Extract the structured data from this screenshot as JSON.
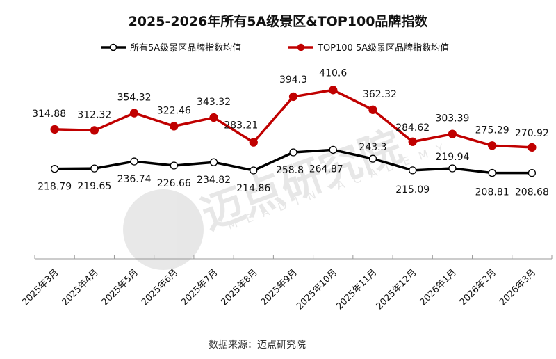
{
  "chart_data": {
    "type": "line",
    "title": "2025-2026年所有5A级景区&TOP100品牌指数",
    "xlabel": "",
    "ylabel": "",
    "categories": [
      "2025年3月",
      "2025年4月",
      "2025年5月",
      "2025年6月",
      "2025年7月",
      "2025年8月",
      "2025年9月",
      "2025年10月",
      "2025年11月",
      "2025年12月",
      "2026年1月",
      "2026年2月",
      "2026年3月"
    ],
    "series": [
      {
        "name": "所有5A级景区品牌指数均值",
        "color": "#000000",
        "values": [
          218.79,
          219.65,
          236.74,
          226.66,
          234.82,
          214.86,
          258.8,
          264.87,
          243.3,
          215.09,
          219.94,
          208.81,
          208.68
        ]
      },
      {
        "name": "TOP100 5A级景区品牌指数均值",
        "color": "#C00000",
        "values": [
          314.88,
          312.32,
          354.32,
          322.46,
          343.32,
          283.21,
          394.3,
          410.6,
          362.32,
          284.62,
          303.39,
          275.29,
          270.92
        ]
      }
    ],
    "ylim": [
      0,
      450
    ],
    "grid": false,
    "legend_position": "top",
    "data_labels": true
  },
  "source": "数据来源：迈点研究院",
  "watermark": {
    "cn": "迈点研究院",
    "en": "MEADIN ACADEMY"
  }
}
